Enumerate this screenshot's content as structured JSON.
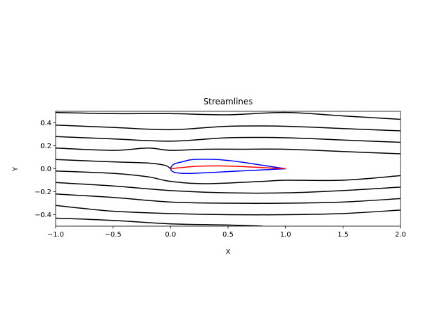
{
  "chart_data": {
    "type": "line",
    "title": "Streamlines",
    "xlabel": "X",
    "ylabel": "Y",
    "xlim": [
      -1.0,
      2.0
    ],
    "ylim": [
      -0.5,
      0.5
    ],
    "xticks": [
      "−1.0",
      "−0.5",
      "0.0",
      "0.5",
      "1.0",
      "1.5",
      "2.0"
    ],
    "xtick_values": [
      -1.0,
      -0.5,
      0.0,
      0.5,
      1.0,
      1.5,
      2.0
    ],
    "yticks": [
      "−0.4",
      "−0.2",
      "0.0",
      "0.2",
      "0.4"
    ],
    "ytick_values": [
      -0.4,
      -0.2,
      0.0,
      0.2,
      0.4
    ],
    "grid": false,
    "streamlines": [
      {
        "x": [
          -1.0,
          -0.5,
          0.0,
          0.5,
          1.0,
          1.5,
          2.0
        ],
        "y": [
          0.49,
          0.48,
          0.48,
          0.47,
          0.49,
          0.46,
          0.43
        ]
      },
      {
        "x": [
          -1.0,
          -0.5,
          0.0,
          0.5,
          1.0,
          1.5,
          2.0
        ],
        "y": [
          0.38,
          0.36,
          0.34,
          0.37,
          0.37,
          0.35,
          0.33
        ]
      },
      {
        "x": [
          -1.0,
          -0.5,
          0.0,
          0.5,
          1.0,
          1.5,
          2.0
        ],
        "y": [
          0.28,
          0.26,
          0.24,
          0.27,
          0.27,
          0.25,
          0.23
        ]
      },
      {
        "x": [
          -1.0,
          -0.5,
          -0.2,
          0.0,
          0.3,
          0.6,
          1.0,
          1.5,
          2.0
        ],
        "y": [
          0.18,
          0.16,
          0.18,
          0.16,
          0.17,
          0.17,
          0.17,
          0.15,
          0.13
        ]
      },
      {
        "x": [
          -1.0,
          -0.5,
          -0.2,
          -0.05,
          0.0
        ],
        "y": [
          0.08,
          0.06,
          0.05,
          0.03,
          0.0
        ]
      },
      {
        "x": [
          -1.0,
          -0.5,
          -0.2,
          0.0,
          0.3,
          0.8,
          1.0,
          1.5,
          2.0
        ],
        "y": [
          -0.02,
          -0.04,
          -0.07,
          -0.11,
          -0.13,
          -0.11,
          -0.1,
          -0.1,
          -0.06
        ]
      },
      {
        "x": [
          -1.0,
          -0.5,
          0.0,
          0.5,
          1.0,
          1.5,
          2.0
        ],
        "y": [
          -0.12,
          -0.15,
          -0.19,
          -0.21,
          -0.21,
          -0.19,
          -0.16
        ]
      },
      {
        "x": [
          -1.0,
          -0.5,
          0.0,
          0.5,
          1.0,
          1.5,
          2.0
        ],
        "y": [
          -0.22,
          -0.25,
          -0.29,
          -0.3,
          -0.3,
          -0.29,
          -0.26
        ]
      },
      {
        "x": [
          -1.0,
          -0.5,
          0.0,
          0.5,
          1.0,
          1.5,
          2.0
        ],
        "y": [
          -0.32,
          -0.37,
          -0.39,
          -0.4,
          -0.4,
          -0.39,
          -0.36
        ]
      },
      {
        "x": [
          -1.0,
          -0.5,
          0.0,
          0.5,
          0.8
        ],
        "y": [
          -0.43,
          -0.45,
          -0.48,
          -0.49,
          -0.5
        ]
      }
    ],
    "airfoil": {
      "color": "#0000ff",
      "x": [
        1.0,
        0.8,
        0.6,
        0.4,
        0.2,
        0.1,
        0.03,
        0.0,
        0.03,
        0.1,
        0.2,
        0.4,
        0.6,
        0.8,
        1.0
      ],
      "y": [
        0.0,
        0.03,
        0.06,
        0.08,
        0.08,
        0.06,
        0.04,
        0.0,
        -0.03,
        -0.04,
        -0.04,
        -0.03,
        -0.02,
        -0.01,
        0.0
      ]
    },
    "camber_line": {
      "color": "#ff0000",
      "x": [
        0.0,
        0.2,
        0.4,
        0.6,
        0.8,
        1.0
      ],
      "y": [
        0.0,
        0.02,
        0.025,
        0.02,
        0.01,
        0.0
      ]
    },
    "streamline_color": "#000000"
  }
}
